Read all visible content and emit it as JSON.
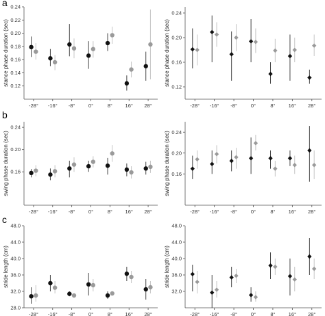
{
  "colors": {
    "black": "#111111",
    "gray": "#9a9a9a",
    "axis": "#555555",
    "errBlack": "#444444",
    "errGray": "#c4c4c4"
  },
  "panel_labels": [
    "a",
    "b",
    "c"
  ],
  "chart_data": [
    {
      "type": "scatter",
      "panel": "a",
      "side": "left",
      "ylabel": "stance phase duration (sec)",
      "ylim": [
        0.1,
        0.24
      ],
      "yticks": [
        "0.12",
        "0.14",
        "0.16",
        "0.18",
        "0.20",
        "0.22",
        "0.24"
      ],
      "categories": [
        "-28°",
        "-16°",
        "-8°",
        "0°",
        "8°",
        "16°",
        "28°"
      ],
      "series": [
        {
          "marker": "circle",
          "color": "black",
          "values": [
            0.179,
            0.162,
            0.183,
            0.166,
            0.185,
            0.124,
            0.15
          ],
          "err_low": [
            0.164,
            0.15,
            0.165,
            0.146,
            0.173,
            0.113,
            0.128
          ],
          "err_high": [
            0.195,
            0.176,
            0.214,
            0.188,
            0.2,
            0.136,
            0.172
          ]
        },
        {
          "marker": "circle",
          "color": "gray",
          "values": [
            0.172,
            0.156,
            0.177,
            0.176,
            0.197,
            0.145,
            0.183
          ],
          "err_low": [
            0.16,
            0.144,
            0.162,
            0.163,
            0.184,
            0.133,
            0.13
          ],
          "err_high": [
            0.185,
            0.167,
            0.192,
            0.188,
            0.21,
            0.157,
            0.236
          ]
        }
      ]
    },
    {
      "type": "scatter",
      "panel": "a",
      "side": "right",
      "ylabel": "stance phase duration (sec)",
      "ylim": [
        0.1,
        0.25
      ],
      "yticks": [
        "0.12",
        "0.16",
        "0.20",
        "0.24"
      ],
      "categories": [
        "-28°",
        "-16°",
        "-8°",
        "0°",
        "8°",
        "16°",
        "28°"
      ],
      "series": [
        {
          "marker": "diamond",
          "color": "black",
          "values": [
            0.181,
            0.209,
            0.173,
            0.194,
            0.141,
            0.17,
            0.135
          ],
          "err_low": [
            0.15,
            0.16,
            0.13,
            0.16,
            0.125,
            0.13,
            0.125
          ],
          "err_high": [
            0.215,
            0.236,
            0.21,
            0.23,
            0.16,
            0.205,
            0.148
          ]
        },
        {
          "marker": "diamond",
          "color": "gray",
          "values": [
            0.18,
            0.205,
            0.2,
            0.193,
            0.179,
            0.18,
            0.187
          ],
          "err_low": [
            0.155,
            0.185,
            0.178,
            0.175,
            0.16,
            0.16,
            0.17
          ],
          "err_high": [
            0.205,
            0.225,
            0.222,
            0.215,
            0.198,
            0.2,
            0.205
          ]
        }
      ]
    },
    {
      "type": "scatter",
      "panel": "b",
      "side": "left",
      "ylabel": "swing phase duration (sec)",
      "ylim": [
        0.1,
        0.25
      ],
      "yticks": [
        "0.16",
        "0.20",
        "0.24"
      ],
      "categories": [
        "-28°",
        "-16°",
        "-8°",
        "0°",
        "8°",
        "16°",
        "28°"
      ],
      "series": [
        {
          "marker": "circle",
          "color": "black",
          "values": [
            0.158,
            0.155,
            0.166,
            0.17,
            0.171,
            0.164,
            0.166
          ],
          "err_low": [
            0.15,
            0.145,
            0.15,
            0.16,
            0.155,
            0.152,
            0.155
          ],
          "err_high": [
            0.165,
            0.166,
            0.18,
            0.18,
            0.185,
            0.175,
            0.178
          ]
        },
        {
          "marker": "circle",
          "color": "gray",
          "values": [
            0.162,
            0.161,
            0.173,
            0.178,
            0.193,
            0.159,
            0.169
          ],
          "err_low": [
            0.152,
            0.15,
            0.16,
            0.168,
            0.178,
            0.148,
            0.158
          ],
          "err_high": [
            0.172,
            0.172,
            0.186,
            0.188,
            0.208,
            0.17,
            0.18
          ]
        }
      ]
    },
    {
      "type": "scatter",
      "panel": "b",
      "side": "right",
      "ylabel": "swing phase duration (sec)",
      "ylim": [
        0.1,
        0.26
      ],
      "yticks": [
        "0.16",
        "0.20",
        "0.24"
      ],
      "categories": [
        "-28°",
        "-16°",
        "-8°",
        "0°",
        "8°",
        "16°",
        "28°"
      ],
      "series": [
        {
          "marker": "diamond",
          "color": "black",
          "values": [
            0.17,
            0.179,
            0.185,
            0.19,
            0.19,
            0.19,
            0.205
          ],
          "err_low": [
            0.15,
            0.16,
            0.165,
            0.16,
            0.17,
            0.175,
            0.145
          ],
          "err_high": [
            0.195,
            0.205,
            0.205,
            0.23,
            0.205,
            0.205,
            0.252
          ]
        },
        {
          "marker": "diamond",
          "color": "gray",
          "values": [
            0.188,
            0.198,
            0.192,
            0.219,
            0.17,
            0.177,
            0.177
          ],
          "err_low": [
            0.17,
            0.18,
            0.17,
            0.205,
            0.155,
            0.16,
            0.15
          ],
          "err_high": [
            0.205,
            0.215,
            0.21,
            0.235,
            0.185,
            0.195,
            0.205
          ]
        }
      ]
    },
    {
      "type": "scatter",
      "panel": "c",
      "side": "left",
      "ylabel": "stride length (cm)",
      "ylim": [
        28.0,
        48.0
      ],
      "yticks": [
        "28.0",
        "32.0",
        "36.0",
        "40.0",
        "44.0",
        "48.0"
      ],
      "categories": [
        "-28°",
        "-16°",
        "-8°",
        "0°",
        "8°",
        "16°",
        "28°"
      ],
      "series": [
        {
          "marker": "circle",
          "color": "black",
          "values": [
            30.8,
            34.0,
            31.4,
            33.7,
            31.0,
            36.3,
            32.5
          ],
          "err_low": [
            29.0,
            32.0,
            30.8,
            31.0,
            30.2,
            34.5,
            30.0
          ],
          "err_high": [
            33.0,
            36.0,
            32.0,
            36.5,
            32.0,
            38.0,
            35.0
          ]
        },
        {
          "marker": "circle",
          "color": "gray",
          "values": [
            31.0,
            32.9,
            31.0,
            33.5,
            31.5,
            35.5,
            33.0
          ],
          "err_low": [
            29.5,
            31.5,
            30.5,
            32.0,
            31.0,
            34.0,
            31.5
          ],
          "err_high": [
            33.5,
            34.5,
            31.5,
            35.0,
            32.0,
            37.0,
            34.5
          ]
        }
      ]
    },
    {
      "type": "scatter",
      "panel": "c",
      "side": "right",
      "ylabel": "stride length (cm)",
      "ylim": [
        28.0,
        48.0
      ],
      "yticks": [
        "32.0",
        "36.0",
        "40.0",
        "44.0",
        "48.0"
      ],
      "categories": [
        "-28°",
        "-16°",
        "-8°",
        "0°",
        "8°",
        "16°",
        "28°"
      ],
      "series": [
        {
          "marker": "diamond",
          "color": "black",
          "values": [
            36.2,
            31.7,
            35.4,
            31.1,
            38.3,
            35.7,
            40.5
          ],
          "err_low": [
            32.0,
            28.0,
            33.0,
            29.5,
            35.0,
            31.0,
            36.0
          ],
          "err_high": [
            38.5,
            36.0,
            38.0,
            33.0,
            41.5,
            40.0,
            45.0
          ]
        },
        {
          "marker": "diamond",
          "color": "gray",
          "values": [
            34.3,
            32.4,
            35.8,
            30.6,
            38.0,
            34.9,
            37.5
          ],
          "err_low": [
            31.5,
            30.5,
            34.0,
            29.5,
            36.0,
            32.0,
            35.0
          ],
          "err_high": [
            37.0,
            34.5,
            37.5,
            32.0,
            40.0,
            38.0,
            40.0
          ]
        }
      ]
    }
  ]
}
